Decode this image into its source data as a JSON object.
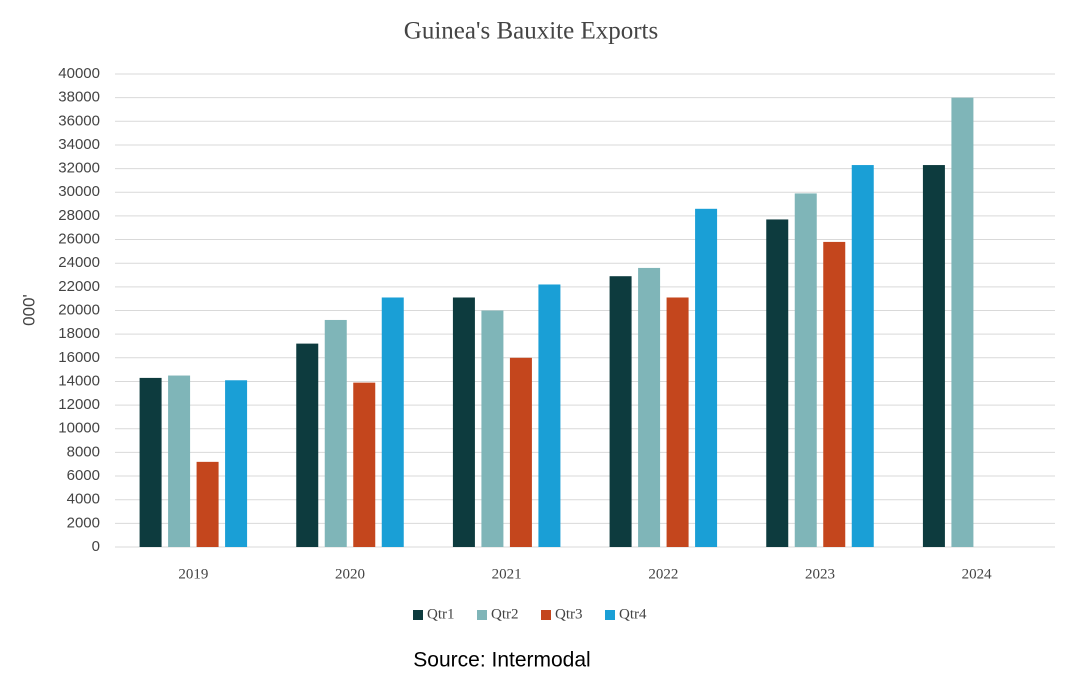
{
  "chart_data": {
    "type": "bar",
    "title": "Guinea's Bauxite Exports",
    "y_label": "000'",
    "source": "Source: Intermodal",
    "categories": [
      "2019",
      "2020",
      "2021",
      "2022",
      "2023",
      "2024"
    ],
    "series": [
      {
        "name": "Qtr1",
        "color": "#0d3b3e",
        "values": [
          14300,
          17200,
          21100,
          22900,
          27700,
          32300
        ]
      },
      {
        "name": "Qtr2",
        "color": "#7fb5b8",
        "values": [
          14500,
          19200,
          20000,
          23600,
          29900,
          38000
        ]
      },
      {
        "name": "Qtr3",
        "color": "#c4461d",
        "values": [
          7200,
          13900,
          16000,
          21100,
          25800,
          null
        ]
      },
      {
        "name": "Qtr4",
        "color": "#1a9fd6",
        "values": [
          14100,
          21100,
          22200,
          28600,
          32300,
          null
        ]
      }
    ],
    "ylim": [
      0,
      40000
    ],
    "yticks": [
      0,
      2000,
      4000,
      6000,
      8000,
      10000,
      12000,
      14000,
      16000,
      18000,
      20000,
      22000,
      24000,
      26000,
      28000,
      30000,
      32000,
      34000,
      36000,
      38000,
      40000
    ],
    "grid": true,
    "legend": "bottom"
  }
}
